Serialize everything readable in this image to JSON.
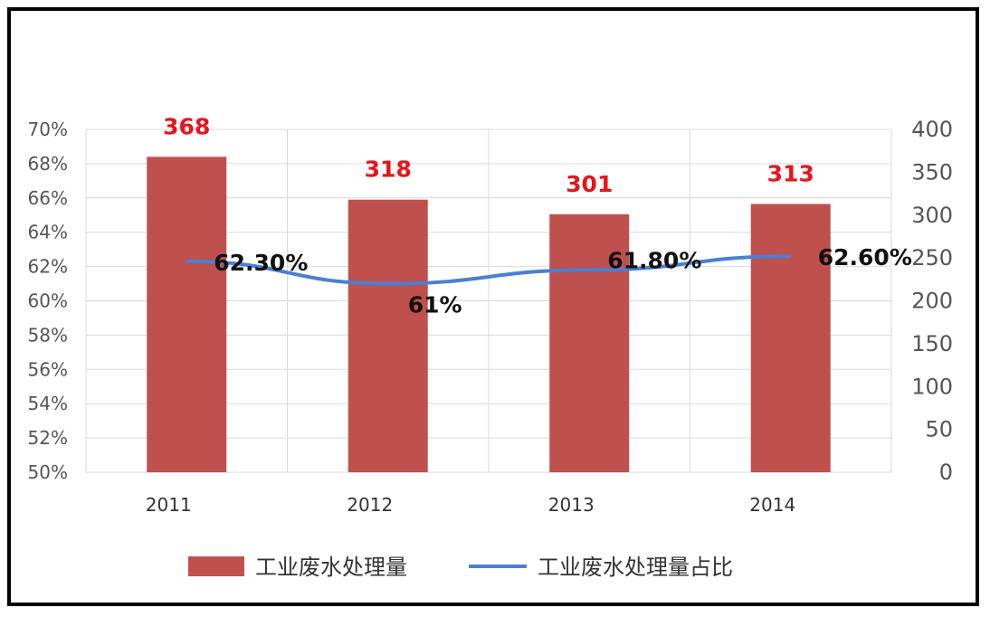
{
  "chart_data": {
    "type": "bar",
    "categories": [
      "2011",
      "2012",
      "2013",
      "2014"
    ],
    "series": [
      {
        "name": "工业废水处理量",
        "kind": "bar",
        "axis": "right",
        "values": [
          368,
          318,
          301,
          313
        ],
        "labels": [
          "368",
          "318",
          "301",
          "313"
        ],
        "color": "#c0504d",
        "label_color": "#e8141c"
      },
      {
        "name": "工业废水处理量占比",
        "kind": "line",
        "axis": "left",
        "values": [
          62.3,
          61,
          61.8,
          62.6
        ],
        "labels": [
          "62.30%",
          "61%",
          "61.80%",
          "62.60%"
        ],
        "color": "#4a7fd4"
      }
    ],
    "y_left": {
      "range": [
        50,
        70
      ],
      "ticks": [
        "50%",
        "52%",
        "54%",
        "56%",
        "58%",
        "60%",
        "62%",
        "64%",
        "66%",
        "68%",
        "70%"
      ]
    },
    "y_right": {
      "range": [
        0,
        400
      ],
      "ticks": [
        "0",
        "50",
        "100",
        "150",
        "200",
        "250",
        "300",
        "350",
        "400"
      ]
    },
    "grid": true,
    "legend_position": "bottom"
  }
}
